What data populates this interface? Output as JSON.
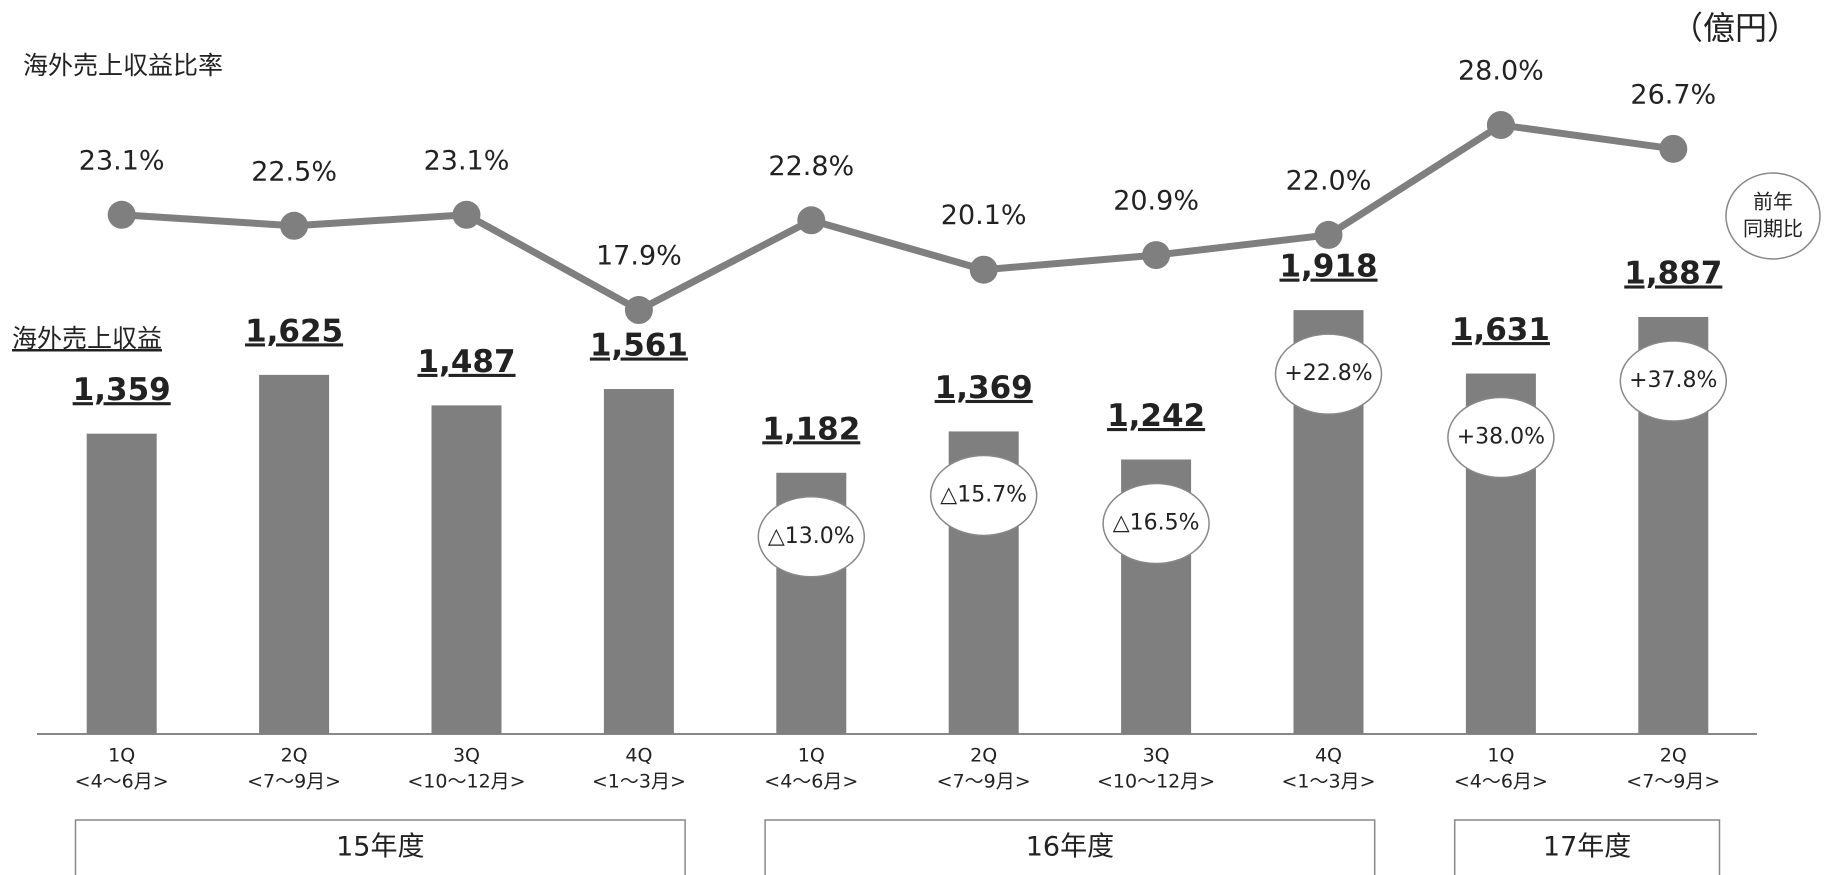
{
  "chart_data": {
    "type": "combo",
    "unit": "（億円）",
    "categories": [
      "1Q",
      "2Q",
      "3Q",
      "4Q",
      "1Q",
      "2Q",
      "3Q",
      "4Q",
      "1Q",
      "2Q"
    ],
    "periods": [
      "<4～6月>",
      "<7～9月>",
      "<10～12月>",
      "<1～3月>",
      "<4～6月>",
      "<7～9月>",
      "<10～12月>",
      "<1～3月>",
      "<4～6月>",
      "<7～9月>"
    ],
    "groups": [
      {
        "label": "15年度",
        "count": 4
      },
      {
        "label": "16年度",
        "count": 4
      },
      {
        "label": "17年度",
        "count": 2
      }
    ],
    "series": [
      {
        "name": "海外売上収益",
        "type": "bar",
        "color": "#7f7f7f",
        "values": [
          1359,
          1625,
          1487,
          1561,
          1182,
          1369,
          1242,
          1918,
          1631,
          1887
        ],
        "value_labels": [
          "1,359",
          "1,625",
          "1,487",
          "1,561",
          "1,182",
          "1,369",
          "1,242",
          "1,918",
          "1,631",
          "1,887"
        ]
      },
      {
        "name": "海外売上収益比率",
        "type": "line",
        "axis": "y2",
        "color": "#7f7f7f",
        "values": [
          23.1,
          22.5,
          23.1,
          17.9,
          22.8,
          20.1,
          20.9,
          22.0,
          28.0,
          26.7
        ],
        "value_labels": [
          "23.1%",
          "22.5%",
          "23.1%",
          "17.9%",
          "22.8%",
          "20.1%",
          "20.9%",
          "22.0%",
          "28.0%",
          "26.7%"
        ]
      }
    ],
    "growth": {
      "label_lines": [
        "前年",
        "同期比"
      ],
      "values": [
        null,
        null,
        null,
        null,
        -13.0,
        -15.7,
        -16.5,
        22.8,
        38.0,
        37.8
      ],
      "value_labels": [
        null,
        null,
        null,
        null,
        "△13.0%",
        "△15.7%",
        "△16.5%",
        "+22.8%",
        "+38.0%",
        "+37.8%"
      ]
    },
    "ylim": [
      0,
      2000
    ],
    "y2lim": [
      10,
      30
    ]
  }
}
